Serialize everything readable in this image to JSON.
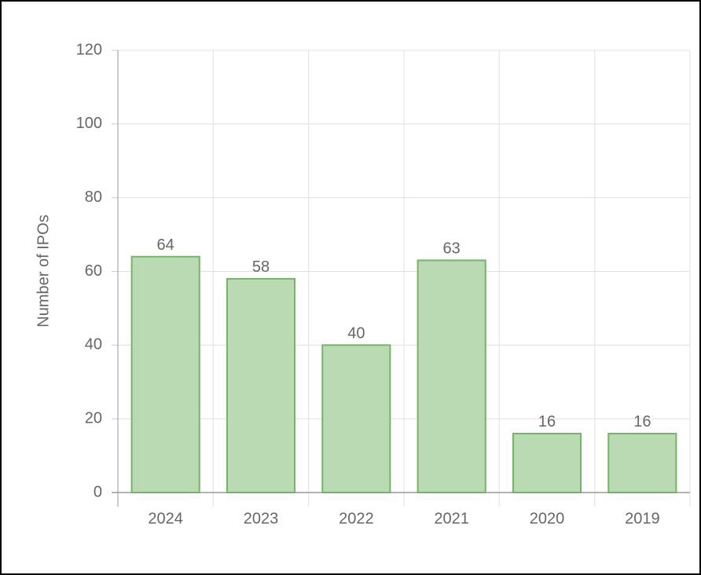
{
  "chart_data": {
    "type": "bar",
    "y_label": "Number of IPOs",
    "categories": [
      "2024",
      "2023",
      "2022",
      "2021",
      "2020",
      "2019"
    ],
    "values": [
      64,
      58,
      40,
      63,
      16,
      16
    ],
    "color": "#b9dab2",
    "border_color": "#74b467",
    "ylim": [
      0,
      120
    ],
    "yticks": [
      0,
      20,
      40,
      60,
      80,
      100,
      120
    ],
    "grid": true
  }
}
